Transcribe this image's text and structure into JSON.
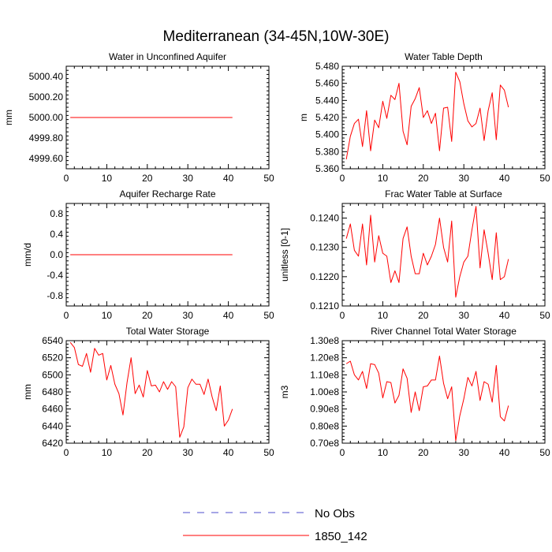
{
  "figure": {
    "title": "Mediterranean (34-45N,10W-30E)"
  },
  "legend": {
    "entries": [
      {
        "label": "No Obs",
        "color": "#4d4dcc",
        "style": "dashed"
      },
      {
        "label": "1850_142",
        "color": "#ff0000",
        "style": "solid"
      }
    ]
  },
  "chart_data": [
    {
      "type": "line",
      "title": "Water in Unconfined Aquifer",
      "xlabel": "",
      "ylabel": "mm",
      "xlim": [
        0,
        50
      ],
      "ylim": [
        4999.5,
        5000.5
      ],
      "xticks": [
        0,
        10,
        20,
        30,
        40,
        50
      ],
      "yticks": [
        4999.6,
        4999.8,
        5000.0,
        5000.2,
        5000.4
      ],
      "ytick_labels": [
        "4999.60",
        "4999.80",
        "5000.00",
        "5000.20",
        "5000.40"
      ],
      "series": [
        {
          "name": "1850_142",
          "color": "#ff0000",
          "x": [
            1,
            2,
            3,
            4,
            5,
            6,
            7,
            8,
            9,
            10,
            11,
            12,
            13,
            14,
            15,
            16,
            17,
            18,
            19,
            20,
            21,
            22,
            23,
            24,
            25,
            26,
            27,
            28,
            29,
            30,
            31,
            32,
            33,
            34,
            35,
            36,
            37,
            38,
            39,
            40,
            41
          ],
          "values": [
            5000,
            5000,
            5000,
            5000,
            5000,
            5000,
            5000,
            5000,
            5000,
            5000,
            5000,
            5000,
            5000,
            5000,
            5000,
            5000,
            5000,
            5000,
            5000,
            5000,
            5000,
            5000,
            5000,
            5000,
            5000,
            5000,
            5000,
            5000,
            5000,
            5000,
            5000,
            5000,
            5000,
            5000,
            5000,
            5000,
            5000,
            5000,
            5000,
            5000,
            5000
          ]
        }
      ]
    },
    {
      "type": "line",
      "title": "Water Table Depth",
      "xlabel": "",
      "ylabel": "m",
      "xlim": [
        0,
        50
      ],
      "ylim": [
        5.36,
        5.48
      ],
      "xticks": [
        0,
        10,
        20,
        30,
        40,
        50
      ],
      "yticks": [
        5.36,
        5.38,
        5.4,
        5.42,
        5.44,
        5.46,
        5.48
      ],
      "ytick_labels": [
        "5.360",
        "5.380",
        "5.400",
        "5.420",
        "5.440",
        "5.460",
        "5.480"
      ],
      "series": [
        {
          "name": "1850_142",
          "color": "#ff0000",
          "x": [
            1,
            2,
            3,
            4,
            5,
            6,
            7,
            8,
            9,
            10,
            11,
            12,
            13,
            14,
            15,
            16,
            17,
            18,
            19,
            20,
            21,
            22,
            23,
            24,
            25,
            26,
            27,
            28,
            29,
            30,
            31,
            32,
            33,
            34,
            35,
            36,
            37,
            38,
            39,
            40,
            41
          ],
          "values": [
            5.371,
            5.398,
            5.413,
            5.418,
            5.386,
            5.428,
            5.381,
            5.417,
            5.408,
            5.439,
            5.419,
            5.446,
            5.441,
            5.46,
            5.404,
            5.388,
            5.433,
            5.442,
            5.455,
            5.42,
            5.428,
            5.413,
            5.425,
            5.381,
            5.431,
            5.432,
            5.392,
            5.473,
            5.462,
            5.436,
            5.416,
            5.409,
            5.413,
            5.431,
            5.393,
            5.428,
            5.449,
            5.394,
            5.458,
            5.452,
            5.432
          ]
        }
      ]
    },
    {
      "type": "line",
      "title": "Aquifer Recharge Rate",
      "xlabel": "",
      "ylabel": "mm/d",
      "xlim": [
        0,
        50
      ],
      "ylim": [
        -1.0,
        1.0
      ],
      "xticks": [
        0,
        10,
        20,
        30,
        40,
        50
      ],
      "yticks": [
        -0.8,
        -0.4,
        0.0,
        0.4,
        0.8
      ],
      "ytick_labels": [
        "-0.8",
        "-0.4",
        "0.0",
        "0.4",
        "0.8"
      ],
      "series": [
        {
          "name": "1850_142",
          "color": "#ff0000",
          "x": [
            1,
            2,
            3,
            4,
            5,
            6,
            7,
            8,
            9,
            10,
            11,
            12,
            13,
            14,
            15,
            16,
            17,
            18,
            19,
            20,
            21,
            22,
            23,
            24,
            25,
            26,
            27,
            28,
            29,
            30,
            31,
            32,
            33,
            34,
            35,
            36,
            37,
            38,
            39,
            40,
            41
          ],
          "values": [
            0,
            0,
            0,
            0,
            0,
            0,
            0,
            0,
            0,
            0,
            0,
            0,
            0,
            0,
            0,
            0,
            0,
            0,
            0,
            0,
            0,
            0,
            0,
            0,
            0,
            0,
            0,
            0,
            0,
            0,
            0,
            0,
            0,
            0,
            0,
            0,
            0,
            0,
            0,
            0,
            0
          ]
        }
      ]
    },
    {
      "type": "line",
      "title": "Frac Water Table at Surface",
      "xlabel": "",
      "ylabel": "unitless [0-1]",
      "xlim": [
        0,
        50
      ],
      "ylim": [
        0.121,
        0.1245
      ],
      "xticks": [
        0,
        10,
        20,
        30,
        40,
        50
      ],
      "yticks": [
        0.121,
        0.122,
        0.123,
        0.124
      ],
      "ytick_labels": [
        "0.1210",
        "0.1220",
        "0.1230",
        "0.1240"
      ],
      "series": [
        {
          "name": "1850_142",
          "color": "#ff0000",
          "x": [
            1,
            2,
            3,
            4,
            5,
            6,
            7,
            8,
            9,
            10,
            11,
            12,
            13,
            14,
            15,
            16,
            17,
            18,
            19,
            20,
            21,
            22,
            23,
            24,
            25,
            26,
            27,
            28,
            29,
            30,
            31,
            32,
            33,
            34,
            35,
            36,
            37,
            38,
            39,
            40,
            41
          ],
          "values": [
            0.1233,
            0.1238,
            0.1229,
            0.1227,
            0.1238,
            0.1224,
            0.1241,
            0.1225,
            0.1234,
            0.1228,
            0.1227,
            0.1218,
            0.1222,
            0.1218,
            0.1233,
            0.1237,
            0.1227,
            0.1221,
            0.1221,
            0.1228,
            0.1224,
            0.1227,
            0.1231,
            0.124,
            0.123,
            0.1225,
            0.1239,
            0.1213,
            0.122,
            0.1225,
            0.1227,
            0.1236,
            0.1244,
            0.1223,
            0.1236,
            0.1228,
            0.1219,
            0.1235,
            0.1219,
            0.122,
            0.1226
          ]
        }
      ]
    },
    {
      "type": "line",
      "title": "Total Water Storage",
      "xlabel": "",
      "ylabel": "mm",
      "xlim": [
        0,
        50
      ],
      "ylim": [
        6420,
        6540
      ],
      "xticks": [
        0,
        10,
        20,
        30,
        40,
        50
      ],
      "yticks": [
        6420,
        6440,
        6460,
        6480,
        6500,
        6520,
        6540
      ],
      "ytick_labels": [
        "6420",
        "6440",
        "6460",
        "6480",
        "6500",
        "6520",
        "6540"
      ],
      "series": [
        {
          "name": "1850_142",
          "color": "#ff0000",
          "x": [
            1,
            2,
            3,
            4,
            5,
            6,
            7,
            8,
            9,
            10,
            11,
            12,
            13,
            14,
            15,
            16,
            17,
            18,
            19,
            20,
            21,
            22,
            23,
            24,
            25,
            26,
            27,
            28,
            29,
            30,
            31,
            32,
            33,
            34,
            35,
            36,
            37,
            38,
            39,
            40,
            41
          ],
          "values": [
            6538,
            6532,
            6512,
            6510,
            6525,
            6503,
            6531,
            6523,
            6525,
            6494,
            6511,
            6489,
            6478,
            6453,
            6491,
            6520,
            6478,
            6488,
            6474,
            6505,
            6487,
            6488,
            6480,
            6492,
            6483,
            6492,
            6486,
            6427,
            6439,
            6485,
            6495,
            6489,
            6489,
            6477,
            6495,
            6474,
            6458,
            6487,
            6440,
            6447,
            6460
          ]
        }
      ]
    },
    {
      "type": "line",
      "title": "River Channel Total Water Storage",
      "xlabel": "",
      "ylabel": "m3",
      "xlim": [
        0,
        50
      ],
      "ylim": [
        70000000,
        130000000
      ],
      "xticks": [
        0,
        10,
        20,
        30,
        40,
        50
      ],
      "yticks": [
        70000000,
        80000000,
        90000000,
        100000000,
        110000000,
        120000000,
        130000000
      ],
      "ytick_labels": [
        "0.70e8",
        "0.80e8",
        "0.90e8",
        "1.00e8",
        "1.10e8",
        "1.20e8",
        "1.30e8"
      ],
      "series": [
        {
          "name": "1850_142",
          "color": "#ff0000",
          "x": [
            1,
            2,
            3,
            4,
            5,
            6,
            7,
            8,
            9,
            10,
            11,
            12,
            13,
            14,
            15,
            16,
            17,
            18,
            19,
            20,
            21,
            22,
            23,
            24,
            25,
            26,
            27,
            28,
            29,
            30,
            31,
            32,
            33,
            34,
            35,
            36,
            37,
            38,
            39,
            40,
            41
          ],
          "values": [
            116500000,
            118000000,
            110000000,
            107000000,
            112000000,
            102000000,
            116500000,
            116000000,
            111000000,
            96500000,
            106000000,
            105500000,
            93500000,
            98000000,
            113500000,
            108000000,
            88000000,
            100000000,
            89000000,
            103000000,
            103500000,
            107000000,
            107000000,
            121000000,
            105000000,
            96000000,
            103000000,
            71500000,
            86000000,
            96000000,
            108500000,
            103500000,
            112000000,
            95000000,
            106000000,
            104500000,
            94000000,
            115500000,
            85500000,
            83000000,
            92000000
          ]
        }
      ]
    }
  ]
}
